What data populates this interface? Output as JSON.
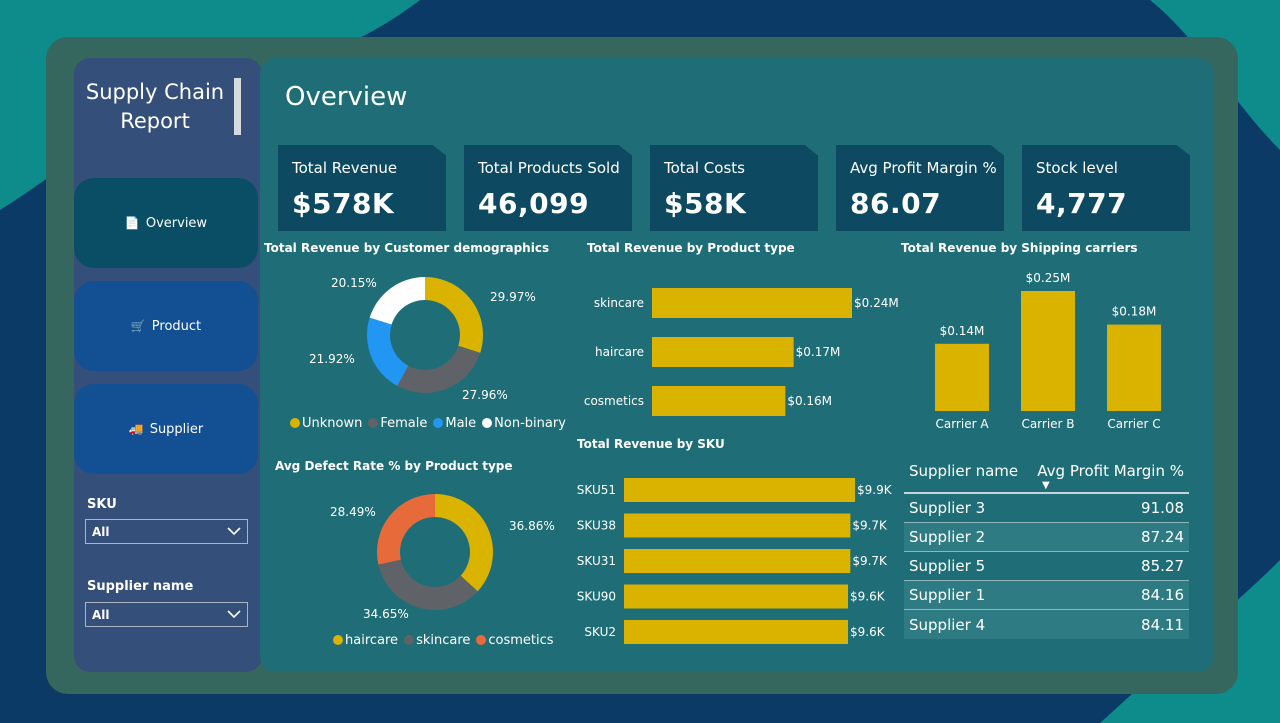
{
  "sidebar": {
    "title": "Supply Chain Report",
    "nav": [
      {
        "label": "Overview",
        "icon": "document-icon",
        "glyph": "📄"
      },
      {
        "label": "Product",
        "icon": "cart-icon",
        "glyph": "🛒"
      },
      {
        "label": "Supplier",
        "icon": "truck-icon",
        "glyph": "🚚"
      }
    ],
    "slicers": [
      {
        "label": "SKU",
        "value": "All"
      },
      {
        "label": "Supplier name",
        "value": "All"
      }
    ]
  },
  "page": {
    "title": "Overview"
  },
  "kpis": [
    {
      "label": "Total Revenue",
      "value": "$578K"
    },
    {
      "label": "Total Products Sold",
      "value": "46,099"
    },
    {
      "label": "Total Costs",
      "value": "$58K"
    },
    {
      "label": "Avg Profit Margin %",
      "value": "86.07"
    },
    {
      "label": "Stock level",
      "value": "4,777"
    }
  ],
  "colors": {
    "yellow": "#d9b300",
    "gray": "#5f6368",
    "blue": "#2196f3",
    "white": "#ffffff",
    "orange": "#e76a3a"
  },
  "demographics": {
    "title": "Total Revenue by Customer demographics",
    "slices": [
      {
        "name": "Unknown",
        "value": 29.97,
        "label": "29.97%",
        "color": "#d9b300"
      },
      {
        "name": "Female",
        "value": 27.96,
        "label": "27.96%",
        "color": "#5f6368"
      },
      {
        "name": "Male",
        "value": 21.92,
        "label": "21.92%",
        "color": "#2196f3"
      },
      {
        "name": "Non-binary",
        "value": 20.15,
        "label": "20.15%",
        "color": "#ffffff"
      }
    ]
  },
  "defect": {
    "title": "Avg Defect Rate % by Product type",
    "slices": [
      {
        "name": "haircare",
        "value": 36.86,
        "label": "36.86%",
        "color": "#d9b300"
      },
      {
        "name": "skincare",
        "value": 34.65,
        "label": "34.65%",
        "color": "#5f6368"
      },
      {
        "name": "cosmetics",
        "value": 28.49,
        "label": "28.49%",
        "color": "#e76a3a"
      }
    ]
  },
  "product_type": {
    "title": "Total Revenue by Product type",
    "bars": [
      {
        "name": "skincare",
        "value": 0.24,
        "label": "$0.24M"
      },
      {
        "name": "haircare",
        "value": 0.17,
        "label": "$0.17M"
      },
      {
        "name": "cosmetics",
        "value": 0.16,
        "label": "$0.16M"
      }
    ]
  },
  "sku": {
    "title": "Total Revenue by SKU",
    "bars": [
      {
        "name": "SKU51",
        "value": 9.9,
        "label": "$9.9K"
      },
      {
        "name": "SKU38",
        "value": 9.7,
        "label": "$9.7K"
      },
      {
        "name": "SKU31",
        "value": 9.7,
        "label": "$9.7K"
      },
      {
        "name": "SKU90",
        "value": 9.6,
        "label": "$9.6K"
      },
      {
        "name": "SKU2",
        "value": 9.6,
        "label": "$9.6K"
      }
    ]
  },
  "carriers": {
    "title": "Total Revenue by Shipping carriers",
    "bars": [
      {
        "name": "Carrier A",
        "value": 0.14,
        "label": "$0.14M"
      },
      {
        "name": "Carrier B",
        "value": 0.25,
        "label": "$0.25M"
      },
      {
        "name": "Carrier C",
        "value": 0.18,
        "label": "$0.18M"
      }
    ]
  },
  "supplier_table": {
    "headers": [
      "Supplier name",
      "Avg Profit Margin %"
    ],
    "rows": [
      [
        "Supplier 3",
        "91.08"
      ],
      [
        "Supplier 2",
        "87.24"
      ],
      [
        "Supplier 5",
        "85.27"
      ],
      [
        "Supplier 1",
        "84.16"
      ],
      [
        "Supplier 4",
        "84.11"
      ]
    ]
  },
  "chart_data": [
    {
      "type": "pie",
      "title": "Total Revenue by Customer demographics",
      "categories": [
        "Unknown",
        "Female",
        "Male",
        "Non-binary"
      ],
      "values": [
        29.97,
        27.96,
        21.92,
        20.15
      ],
      "legend": "bottom"
    },
    {
      "type": "pie",
      "title": "Avg Defect Rate % by Product type",
      "categories": [
        "haircare",
        "skincare",
        "cosmetics"
      ],
      "values": [
        36.86,
        34.65,
        28.49
      ],
      "legend": "bottom"
    },
    {
      "type": "bar",
      "title": "Total Revenue by Product type",
      "categories": [
        "skincare",
        "haircare",
        "cosmetics"
      ],
      "values": [
        0.24,
        0.17,
        0.16
      ]
    },
    {
      "type": "bar",
      "title": "Total Revenue by SKU",
      "categories": [
        "SKU51",
        "SKU38",
        "SKU31",
        "SKU90",
        "SKU2"
      ],
      "values": [
        9.9,
        9.7,
        9.7,
        9.6,
        9.6
      ]
    },
    {
      "type": "bar",
      "title": "Total Revenue by Shipping carriers",
      "categories": [
        "Carrier A",
        "Carrier B",
        "Carrier C"
      ],
      "values": [
        0.14,
        0.25,
        0.18
      ]
    }
  ]
}
